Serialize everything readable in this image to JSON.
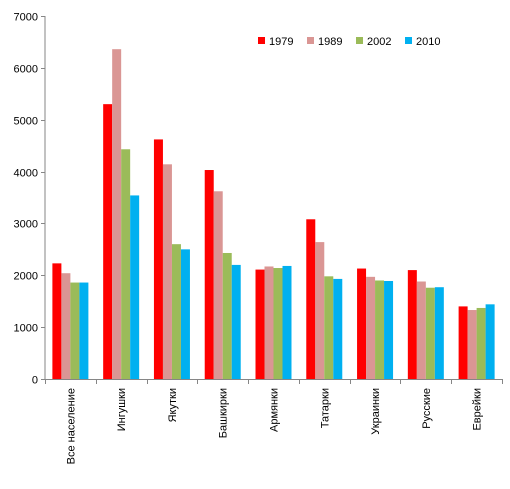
{
  "chart_data": {
    "type": "bar",
    "title": "",
    "xlabel": "",
    "ylabel": "",
    "ylim": [
      0,
      7000
    ],
    "y_ticks": [
      0,
      1000,
      2000,
      3000,
      4000,
      5000,
      6000,
      7000
    ],
    "grid": false,
    "legend_position": "top-right",
    "categories": [
      "Все население",
      "Ингушки",
      "Якутки",
      "Башкирки",
      "Армянки",
      "Татарки",
      "Украинки",
      "Русские",
      "Еврейки"
    ],
    "series": [
      {
        "name": "1979",
        "color": "#ff0000",
        "values": [
          2230,
          5300,
          4620,
          4030,
          2110,
          3080,
          2130,
          2100,
          1400
        ]
      },
      {
        "name": "1989",
        "color": "#da9694",
        "values": [
          2040,
          6360,
          4140,
          3620,
          2170,
          2640,
          1970,
          1880,
          1330
        ]
      },
      {
        "name": "2002",
        "color": "#9bbb59",
        "values": [
          1860,
          4430,
          2600,
          2430,
          2140,
          1980,
          1900,
          1760,
          1370
        ]
      },
      {
        "name": "2010",
        "color": "#00b0f0",
        "values": [
          1860,
          3540,
          2500,
          2200,
          2180,
          1930,
          1890,
          1770,
          1440
        ]
      }
    ]
  }
}
